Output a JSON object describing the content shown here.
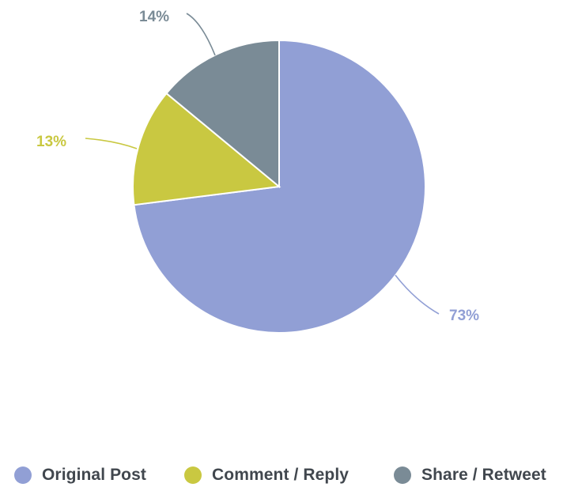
{
  "chart_data": {
    "type": "pie",
    "title": "",
    "start": "top",
    "direction": "clockwise",
    "legend_position": "bottom",
    "slices": [
      {
        "name": "Original Post",
        "value": 73,
        "label": "73%",
        "color": "#919fd5"
      },
      {
        "name": "Comment / Reply",
        "value": 13,
        "label": "13%",
        "color": "#c9c841"
      },
      {
        "name": "Share / Retweet",
        "value": 14,
        "label": "14%",
        "color": "#7a8b96"
      }
    ]
  },
  "legend": {
    "items": [
      {
        "label": "Original Post",
        "color": "#919fd5"
      },
      {
        "label": "Comment / Reply",
        "color": "#c9c841"
      },
      {
        "label": "Share / Retweet",
        "color": "#7a8b96"
      }
    ]
  },
  "colors": {
    "slice_border": "#ffffff",
    "legend_text": "#41474e"
  }
}
